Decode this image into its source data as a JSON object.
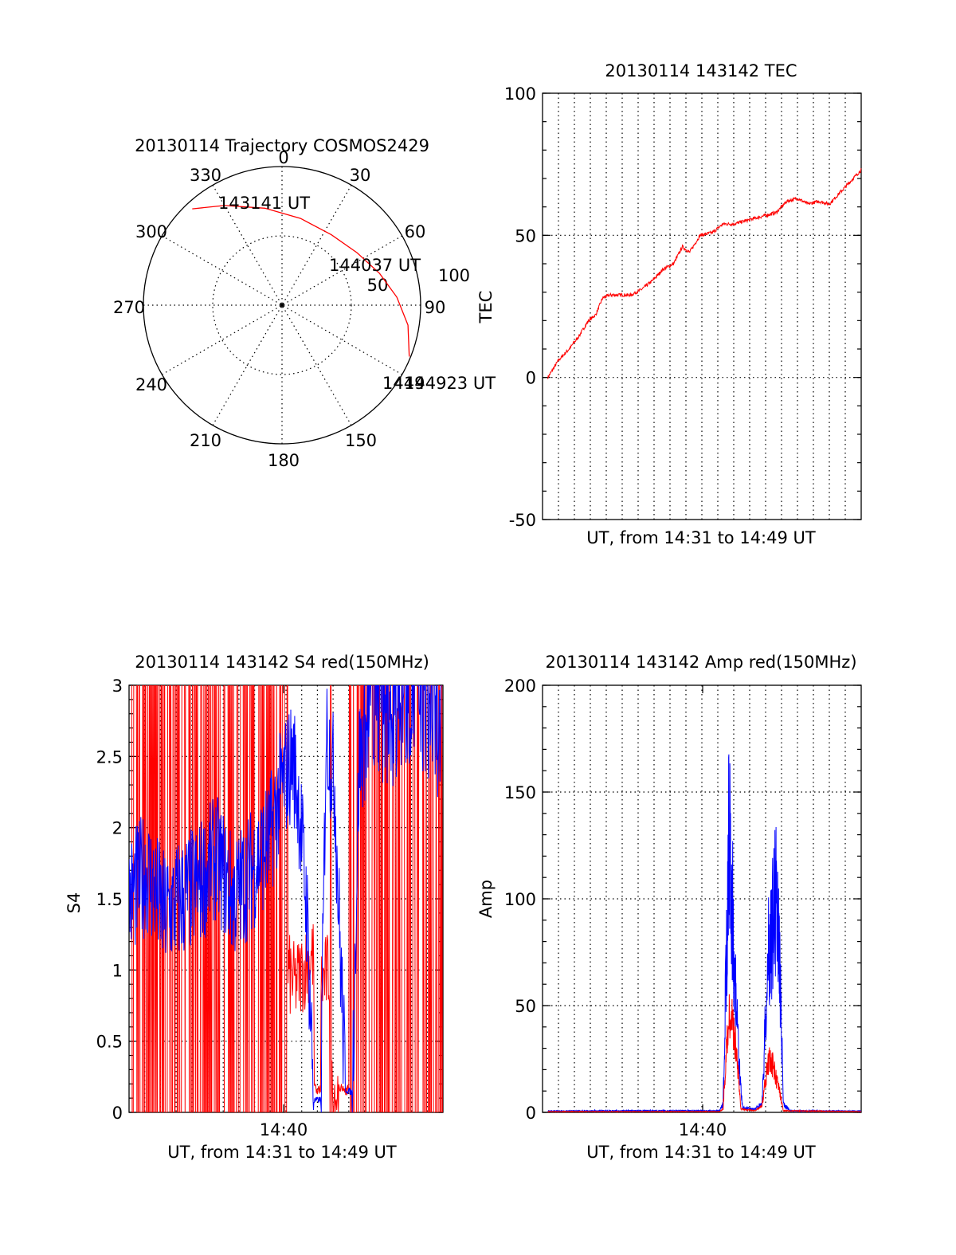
{
  "colors": {
    "red": "#ff0000",
    "blue": "#0000ff",
    "axis": "#000000"
  },
  "chart_data": [
    {
      "type": "polar-trajectory",
      "title": "20130114 Trajectory COSMOS2429",
      "angle_labels": [
        "0",
        "30",
        "60",
        "90",
        "150",
        "180",
        "210",
        "240",
        "270",
        "300",
        "330"
      ],
      "radius_labels": [
        "50",
        "100"
      ],
      "radial_axis_max": 100,
      "track": [
        {
          "azimuth": 317,
          "distance": 95
        },
        {
          "azimuth": 330,
          "distance": 83
        },
        {
          "azimuth": 350,
          "distance": 71
        },
        {
          "azimuth": 12,
          "distance": 64
        },
        {
          "azimuth": 35,
          "distance": 62
        },
        {
          "azimuth": 55,
          "distance": 66
        },
        {
          "azimuth": 72,
          "distance": 74
        },
        {
          "azimuth": 86,
          "distance": 83
        },
        {
          "azimuth": 99,
          "distance": 92
        },
        {
          "azimuth": 112,
          "distance": 99
        }
      ],
      "annotations": [
        {
          "text": "143141 UT",
          "azimuth": 317,
          "distance": 95
        },
        {
          "text": "144037 UT",
          "azimuth": 60,
          "distance": 68
        },
        {
          "text": "1449",
          "azimuth": 112,
          "distance": 99
        },
        {
          "text": "144923 UT",
          "azimuth": 112,
          "distance": 99
        }
      ]
    },
    {
      "type": "line",
      "title": "20130114 143142 TEC",
      "xlabel": "UT, from 14:31 to 14:49 UT",
      "ylabel": "TEC",
      "ylim": [
        -50,
        100
      ],
      "yticks": [
        "100",
        "50",
        "0",
        "-50"
      ],
      "xlim_minutes": [
        0,
        18
      ],
      "grid": "dotted",
      "series": [
        {
          "color": "red",
          "points": [
            [
              0.3,
              0
            ],
            [
              0.9,
              6
            ],
            [
              1.5,
              10
            ],
            [
              2.0,
              14
            ],
            [
              2.6,
              20
            ],
            [
              3.0,
              22
            ],
            [
              3.4,
              28
            ],
            [
              3.8,
              29
            ],
            [
              4.4,
              29
            ],
            [
              5.0,
              29
            ],
            [
              5.6,
              31
            ],
            [
              6.2,
              34
            ],
            [
              6.8,
              38
            ],
            [
              7.4,
              40
            ],
            [
              7.9,
              46
            ],
            [
              8.3,
              44
            ],
            [
              8.9,
              50
            ],
            [
              9.6,
              51
            ],
            [
              10.2,
              54
            ],
            [
              10.8,
              54
            ],
            [
              11.4,
              55
            ],
            [
              12.0,
              56
            ],
            [
              12.6,
              57
            ],
            [
              13.2,
              58
            ],
            [
              13.8,
              62
            ],
            [
              14.4,
              63
            ],
            [
              15.0,
              61
            ],
            [
              15.6,
              62
            ],
            [
              16.2,
              61
            ],
            [
              16.8,
              65
            ],
            [
              17.4,
              69
            ],
            [
              18.0,
              73
            ]
          ]
        }
      ]
    },
    {
      "type": "line",
      "title": "20130114 143142 S4 red(150MHz)",
      "xlabel": "UT, from 14:31 to 14:49 UT",
      "ylabel": "S4",
      "ylim": [
        0,
        3
      ],
      "yticks": [
        "3",
        "2.5",
        "2",
        "1.5",
        "1",
        "0.5",
        "0"
      ],
      "xtick_labels": [
        "14:40"
      ],
      "grid": "dotted",
      "series": [
        {
          "color": "red",
          "description_points": [
            [
              0,
              1.5
            ],
            [
              2,
              1.6
            ],
            [
              4,
              1.5
            ],
            [
              6,
              1.6
            ],
            [
              8,
              1.4
            ],
            [
              9.0,
              1.0
            ],
            [
              9.5,
              0.9
            ],
            [
              10.0,
              1.0
            ],
            [
              10.5,
              1.1
            ],
            [
              11.0,
              0.9
            ],
            [
              11.5,
              1.0
            ],
            [
              11.6,
              0.15
            ],
            [
              12.0,
              0.13
            ],
            [
              12.4,
              0.15
            ],
            [
              12.6,
              1.4
            ],
            [
              14,
              1.6
            ],
            [
              16,
              1.8
            ],
            [
              18,
              2.2
            ]
          ]
        },
        {
          "color": "blue",
          "description_points": [
            [
              0,
              1.5
            ],
            [
              1,
              1.7
            ],
            [
              2,
              1.4
            ],
            [
              3,
              1.5
            ],
            [
              4,
              1.6
            ],
            [
              5,
              1.8
            ],
            [
              6,
              1.5
            ],
            [
              7,
              1.7
            ],
            [
              8,
              1.9
            ],
            [
              8.8,
              2.3
            ],
            [
              9.4,
              2.5
            ],
            [
              9.8,
              2.1
            ],
            [
              10.2,
              1.4
            ],
            [
              10.6,
              0.08
            ],
            [
              11.0,
              0.09
            ],
            [
              11.3,
              2.7
            ],
            [
              11.8,
              2.3
            ],
            [
              12.0,
              1.5
            ],
            [
              12.4,
              0.16
            ],
            [
              12.8,
              0.14
            ],
            [
              13.2,
              2.5
            ],
            [
              14,
              2.8
            ],
            [
              15,
              2.7
            ],
            [
              16,
              2.9
            ],
            [
              17,
              2.8
            ],
            [
              18,
              2.6
            ]
          ]
        }
      ]
    },
    {
      "type": "line",
      "title": "20130114 143142 Amp red(150MHz)",
      "xlabel": "UT, from 14:31 to 14:49 UT",
      "ylabel": "Amp",
      "ylim": [
        0,
        200
      ],
      "yticks": [
        "200",
        "150",
        "100",
        "50",
        "0"
      ],
      "xtick_labels": [
        "14:40"
      ],
      "grid": "dotted",
      "series": [
        {
          "color": "red",
          "points": [
            [
              0,
              0.5
            ],
            [
              10.0,
              0.5
            ],
            [
              10.2,
              2
            ],
            [
              10.4,
              40
            ],
            [
              10.6,
              62
            ],
            [
              10.8,
              50
            ],
            [
              11.0,
              30
            ],
            [
              11.2,
              2
            ],
            [
              12.0,
              1
            ],
            [
              12.4,
              4
            ],
            [
              12.6,
              20
            ],
            [
              12.8,
              35
            ],
            [
              13.0,
              28
            ],
            [
              13.2,
              20
            ],
            [
              13.4,
              12
            ],
            [
              13.6,
              1
            ],
            [
              18,
              0.5
            ]
          ]
        },
        {
          "color": "blue",
          "points": [
            [
              0,
              0.8
            ],
            [
              5,
              1
            ],
            [
              10.0,
              1
            ],
            [
              10.2,
              5
            ],
            [
              10.4,
              110
            ],
            [
              10.55,
              187
            ],
            [
              10.7,
              140
            ],
            [
              10.9,
              80
            ],
            [
              11.1,
              30
            ],
            [
              11.3,
              3
            ],
            [
              12.0,
              2
            ],
            [
              12.4,
              6
            ],
            [
              12.6,
              60
            ],
            [
              12.8,
              110
            ],
            [
              13.0,
              120
            ],
            [
              13.2,
              145
            ],
            [
              13.4,
              100
            ],
            [
              13.6,
              5
            ],
            [
              14,
              1
            ],
            [
              18,
              0.8
            ]
          ]
        }
      ]
    }
  ]
}
